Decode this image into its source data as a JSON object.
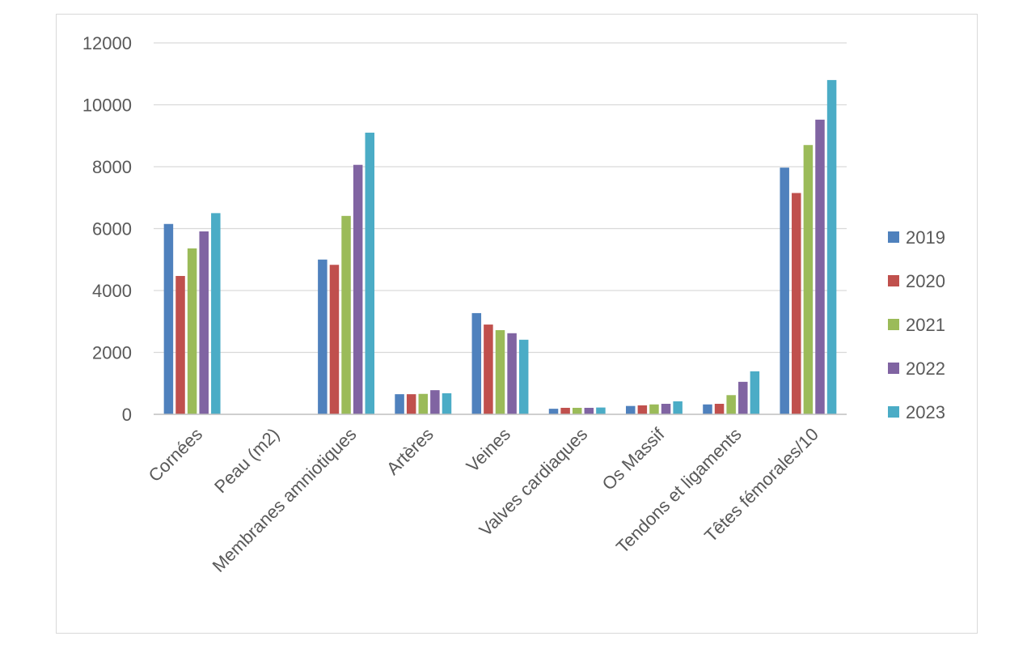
{
  "chart_data": {
    "type": "bar",
    "categories": [
      "Cornées",
      "Peau (m2)",
      "Membranes amniotiques",
      "Artères",
      "Veines",
      "Valves cardiaques",
      "Os Massif",
      "Tendons et ligaments",
      "Têtes fémorales/10"
    ],
    "series": [
      {
        "name": "2019",
        "color": "#4f81bd",
        "values": [
          6150,
          0,
          5000,
          650,
          3270,
          180,
          270,
          320,
          7970
        ]
      },
      {
        "name": "2020",
        "color": "#c0504d",
        "values": [
          4470,
          0,
          4830,
          650,
          2900,
          210,
          290,
          340,
          7150
        ]
      },
      {
        "name": "2021",
        "color": "#9bbb59",
        "values": [
          5360,
          0,
          6410,
          660,
          2720,
          210,
          320,
          620,
          8700
        ]
      },
      {
        "name": "2022",
        "color": "#8064a2",
        "values": [
          5910,
          0,
          8060,
          780,
          2620,
          210,
          340,
          1050,
          9520
        ]
      },
      {
        "name": "2023",
        "color": "#4bacc6",
        "values": [
          6500,
          0,
          9100,
          680,
          2410,
          220,
          420,
          1390,
          10800
        ]
      }
    ],
    "y_ticks": [
      "0",
      "2000",
      "4000",
      "6000",
      "8000",
      "10000",
      "12000"
    ],
    "ylim": [
      0,
      12000
    ],
    "grid": true,
    "legend_position": "right"
  }
}
